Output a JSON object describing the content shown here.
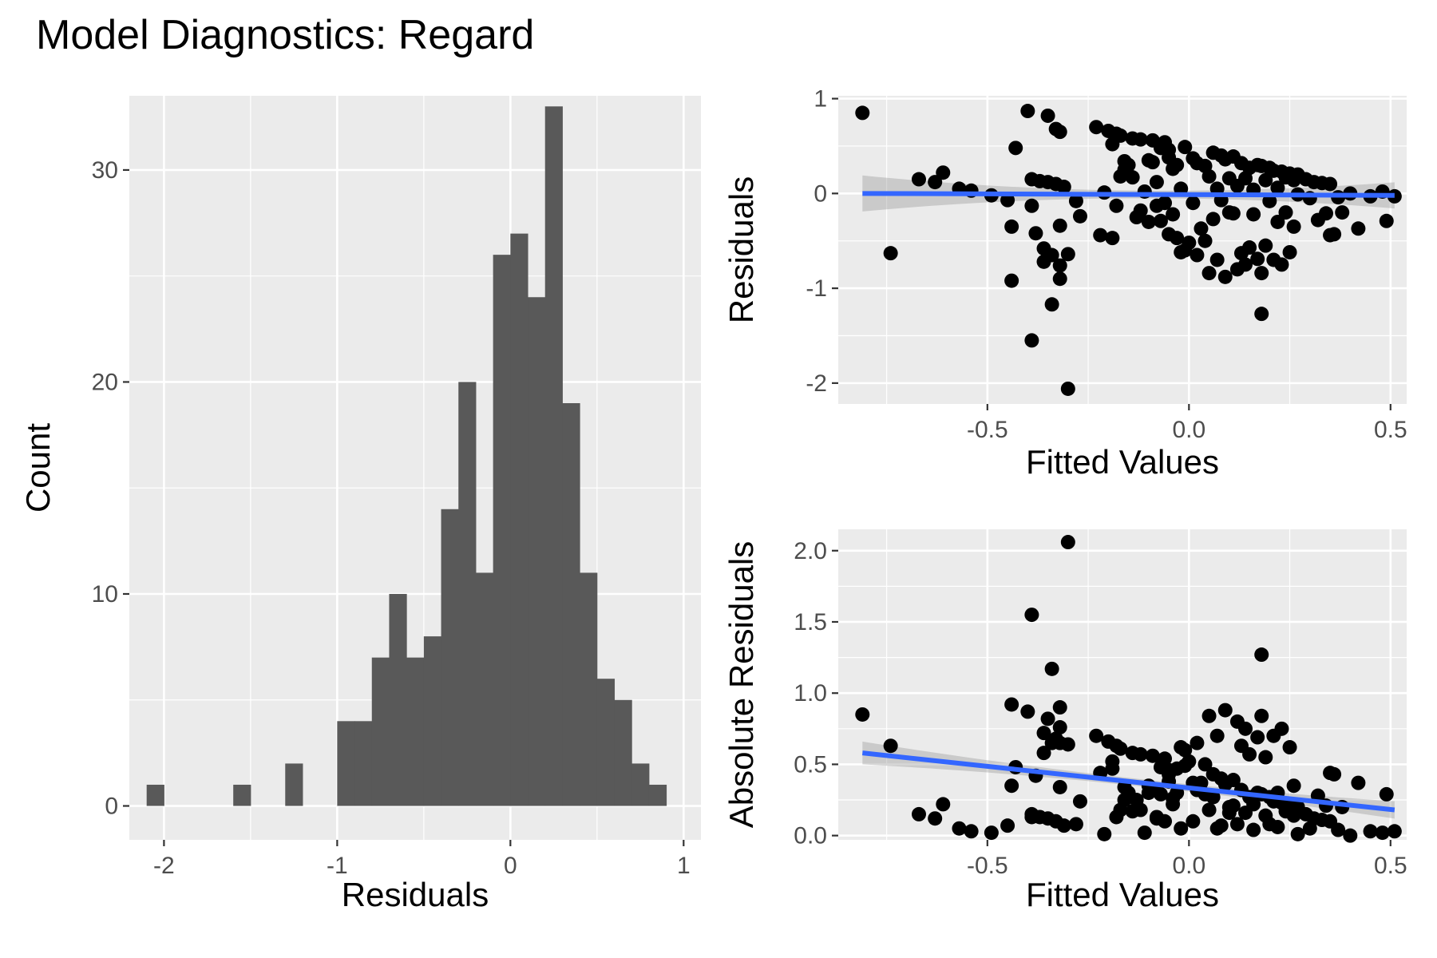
{
  "title": "Model Diagnostics: Regard",
  "colors": {
    "panel_bg": "#EBEBEB",
    "grid": "#FFFFFF",
    "bar_fill": "#595959",
    "point": "#000000",
    "smooth_line": "#3366FF",
    "ci_band": "#999999"
  },
  "chart_data": [
    {
      "type": "bar",
      "subtype": "histogram",
      "xlabel": "Residuals",
      "ylabel": "Count",
      "xlim": [
        -2.2,
        1.1
      ],
      "ylim": [
        -1.6,
        33.5
      ],
      "x_ticks": [
        -2,
        -1,
        0,
        1
      ],
      "x_tick_labels": [
        "-2",
        "-1",
        "0",
        "1"
      ],
      "y_ticks": [
        0,
        10,
        20,
        30
      ],
      "y_tick_labels": [
        "0",
        "10",
        "20",
        "30"
      ],
      "grid": true,
      "bin_width": 0.1,
      "bins": [
        {
          "x0": -2.1,
          "x1": -2.0,
          "count": 1
        },
        {
          "x0": -1.6,
          "x1": -1.5,
          "count": 1
        },
        {
          "x0": -1.3,
          "x1": -1.2,
          "count": 2
        },
        {
          "x0": -1.0,
          "x1": -0.9,
          "count": 4
        },
        {
          "x0": -0.9,
          "x1": -0.8,
          "count": 4
        },
        {
          "x0": -0.8,
          "x1": -0.7,
          "count": 7
        },
        {
          "x0": -0.7,
          "x1": -0.6,
          "count": 10
        },
        {
          "x0": -0.6,
          "x1": -0.5,
          "count": 7
        },
        {
          "x0": -0.5,
          "x1": -0.4,
          "count": 8
        },
        {
          "x0": -0.4,
          "x1": -0.3,
          "count": 14
        },
        {
          "x0": -0.3,
          "x1": -0.2,
          "count": 20
        },
        {
          "x0": -0.2,
          "x1": -0.1,
          "count": 11
        },
        {
          "x0": -0.1,
          "x1": 0.0,
          "count": 26
        },
        {
          "x0": 0.0,
          "x1": 0.1,
          "count": 27
        },
        {
          "x0": 0.1,
          "x1": 0.2,
          "count": 24
        },
        {
          "x0": 0.2,
          "x1": 0.3,
          "count": 33
        },
        {
          "x0": 0.3,
          "x1": 0.4,
          "count": 19
        },
        {
          "x0": 0.4,
          "x1": 0.5,
          "count": 11
        },
        {
          "x0": 0.5,
          "x1": 0.6,
          "count": 6
        },
        {
          "x0": 0.6,
          "x1": 0.7,
          "count": 5
        },
        {
          "x0": 0.7,
          "x1": 0.8,
          "count": 2
        },
        {
          "x0": 0.8,
          "x1": 0.9,
          "count": 1
        }
      ]
    },
    {
      "type": "scatter",
      "xlabel": "Fitted Values",
      "ylabel": "Residuals",
      "xlim": [
        -0.87,
        0.54
      ],
      "ylim": [
        -2.22,
        1.03
      ],
      "x_ticks": [
        -0.5,
        0.0,
        0.5
      ],
      "x_tick_labels": [
        "-0.5",
        "0.0",
        "0.5"
      ],
      "y_ticks": [
        -2,
        -1,
        0,
        1
      ],
      "y_tick_labels": [
        "-2",
        "-1",
        "0",
        "1"
      ],
      "grid": true,
      "smooth": {
        "method": "lm",
        "x0": -0.81,
        "y0": 0.0,
        "x1": 0.51,
        "y1": -0.02,
        "se_halfwidth_ends": 0.19,
        "se_halfwidth_mid": 0.04,
        "x_mid": -0.08
      },
      "points": [
        [
          -0.81,
          0.85
        ],
        [
          -0.74,
          -0.63
        ],
        [
          -0.67,
          0.15
        ],
        [
          -0.63,
          0.12
        ],
        [
          -0.61,
          0.22
        ],
        [
          -0.57,
          0.05
        ],
        [
          -0.54,
          0.03
        ],
        [
          -0.49,
          -0.02
        ],
        [
          -0.45,
          -0.07
        ],
        [
          -0.44,
          -0.35
        ],
        [
          -0.44,
          -0.92
        ],
        [
          -0.43,
          0.48
        ],
        [
          -0.4,
          0.87
        ],
        [
          -0.39,
          0.15
        ],
        [
          -0.39,
          -0.13
        ],
        [
          -0.39,
          -1.55
        ],
        [
          -0.38,
          -0.42
        ],
        [
          -0.37,
          0.13
        ],
        [
          -0.36,
          -0.58
        ],
        [
          -0.36,
          -0.72
        ],
        [
          -0.35,
          0.12
        ],
        [
          -0.35,
          0.82
        ],
        [
          -0.34,
          -0.65
        ],
        [
          -0.34,
          -1.17
        ],
        [
          -0.33,
          0.68
        ],
        [
          -0.33,
          0.1
        ],
        [
          -0.32,
          -0.76
        ],
        [
          -0.32,
          0.65
        ],
        [
          -0.32,
          -0.9
        ],
        [
          -0.32,
          -0.34
        ],
        [
          -0.31,
          0.07
        ],
        [
          -0.3,
          -2.06
        ],
        [
          -0.3,
          -0.64
        ],
        [
          -0.28,
          -0.08
        ],
        [
          -0.27,
          -0.24
        ],
        [
          -0.23,
          0.7
        ],
        [
          -0.22,
          -0.44
        ],
        [
          -0.21,
          0.01
        ],
        [
          -0.2,
          0.66
        ],
        [
          -0.19,
          0.52
        ],
        [
          -0.19,
          -0.47
        ],
        [
          -0.18,
          0.63
        ],
        [
          -0.18,
          -0.13
        ],
        [
          -0.17,
          0.18
        ],
        [
          -0.17,
          0.61
        ],
        [
          -0.16,
          0.25
        ],
        [
          -0.16,
          0.34
        ],
        [
          -0.15,
          0.3
        ],
        [
          -0.14,
          0.58
        ],
        [
          -0.14,
          0.17
        ],
        [
          -0.13,
          -0.25
        ],
        [
          -0.12,
          0.57
        ],
        [
          -0.12,
          -0.18
        ],
        [
          -0.11,
          0.02
        ],
        [
          -0.1,
          0.35
        ],
        [
          -0.1,
          -0.3
        ],
        [
          -0.09,
          0.56
        ],
        [
          -0.09,
          0.33
        ],
        [
          -0.08,
          -0.13
        ],
        [
          -0.08,
          0.12
        ],
        [
          -0.07,
          0.48
        ],
        [
          -0.07,
          -0.29
        ],
        [
          -0.06,
          0.54
        ],
        [
          -0.06,
          -0.1
        ],
        [
          -0.05,
          0.46
        ],
        [
          -0.05,
          0.38
        ],
        [
          -0.05,
          -0.43
        ],
        [
          -0.04,
          0.26
        ],
        [
          -0.04,
          -0.22
        ],
        [
          -0.03,
          0.3
        ],
        [
          -0.03,
          -0.47
        ],
        [
          -0.02,
          0.05
        ],
        [
          -0.02,
          -0.62
        ],
        [
          -0.01,
          0.49
        ],
        [
          -0.01,
          -0.6
        ],
        [
          0.0,
          -0.52
        ],
        [
          0.01,
          0.37
        ],
        [
          0.01,
          -0.1
        ],
        [
          0.02,
          0.32
        ],
        [
          0.02,
          -0.65
        ],
        [
          0.03,
          -0.37
        ],
        [
          0.04,
          0.29
        ],
        [
          0.04,
          -0.5
        ],
        [
          0.05,
          0.18
        ],
        [
          0.05,
          -0.84
        ],
        [
          0.06,
          -0.27
        ],
        [
          0.06,
          0.43
        ],
        [
          0.07,
          0.05
        ],
        [
          0.07,
          -0.7
        ],
        [
          0.08,
          0.4
        ],
        [
          0.08,
          -0.07
        ],
        [
          0.09,
          0.36
        ],
        [
          0.09,
          -0.88
        ],
        [
          0.1,
          0.16
        ],
        [
          0.1,
          -0.2
        ],
        [
          0.11,
          0.39
        ],
        [
          0.11,
          -0.21
        ],
        [
          0.12,
          0.08
        ],
        [
          0.12,
          -0.8
        ],
        [
          0.13,
          -0.63
        ],
        [
          0.13,
          0.32
        ],
        [
          0.14,
          -0.75
        ],
        [
          0.14,
          0.16
        ],
        [
          0.15,
          -0.57
        ],
        [
          0.15,
          0.27
        ],
        [
          0.16,
          -0.22
        ],
        [
          0.16,
          0.04
        ],
        [
          0.17,
          0.3
        ],
        [
          0.17,
          -0.69
        ],
        [
          0.18,
          0.29
        ],
        [
          0.18,
          -0.84
        ],
        [
          0.18,
          -1.27
        ],
        [
          0.19,
          0.14
        ],
        [
          0.19,
          -0.55
        ],
        [
          0.2,
          0.27
        ],
        [
          0.2,
          -0.08
        ],
        [
          0.21,
          -0.7
        ],
        [
          0.21,
          0.24
        ],
        [
          0.22,
          -0.3
        ],
        [
          0.22,
          0.06
        ],
        [
          0.23,
          0.23
        ],
        [
          0.23,
          -0.75
        ],
        [
          0.24,
          -0.2
        ],
        [
          0.24,
          0.17
        ],
        [
          0.25,
          0.21
        ],
        [
          0.25,
          -0.62
        ],
        [
          0.26,
          -0.35
        ],
        [
          0.26,
          0.14
        ],
        [
          0.27,
          -0.01
        ],
        [
          0.27,
          0.2
        ],
        [
          0.29,
          0.15
        ],
        [
          0.3,
          -0.05
        ],
        [
          0.31,
          0.12
        ],
        [
          0.32,
          -0.28
        ],
        [
          0.33,
          0.11
        ],
        [
          0.34,
          -0.21
        ],
        [
          0.35,
          0.1
        ],
        [
          0.35,
          -0.44
        ],
        [
          0.36,
          -0.43
        ],
        [
          0.37,
          -0.04
        ],
        [
          0.38,
          -0.2
        ],
        [
          0.4,
          0.0
        ],
        [
          0.42,
          -0.37
        ],
        [
          0.45,
          -0.03
        ],
        [
          0.48,
          0.02
        ],
        [
          0.49,
          -0.29
        ],
        [
          0.51,
          -0.03
        ]
      ]
    },
    {
      "type": "scatter",
      "xlabel": "Fitted Values",
      "ylabel": "Absolute Residuals",
      "xlim": [
        -0.87,
        0.54
      ],
      "ylim": [
        -0.03,
        2.15
      ],
      "x_ticks": [
        -0.5,
        0.0,
        0.5
      ],
      "x_tick_labels": [
        "-0.5",
        "0.0",
        "0.5"
      ],
      "y_ticks": [
        0.0,
        0.5,
        1.0,
        1.5,
        2.0
      ],
      "y_tick_labels": [
        "0.0",
        "0.5",
        "1.0",
        "1.5",
        "2.0"
      ],
      "grid": true,
      "smooth": {
        "method": "lm",
        "x0": -0.81,
        "y0": 0.58,
        "x1": 0.51,
        "y1": 0.18,
        "se_halfwidth_ends": 0.08,
        "se_halfwidth_mid": 0.025,
        "x_mid": -0.08
      },
      "abs_of_panel": 1
    }
  ]
}
